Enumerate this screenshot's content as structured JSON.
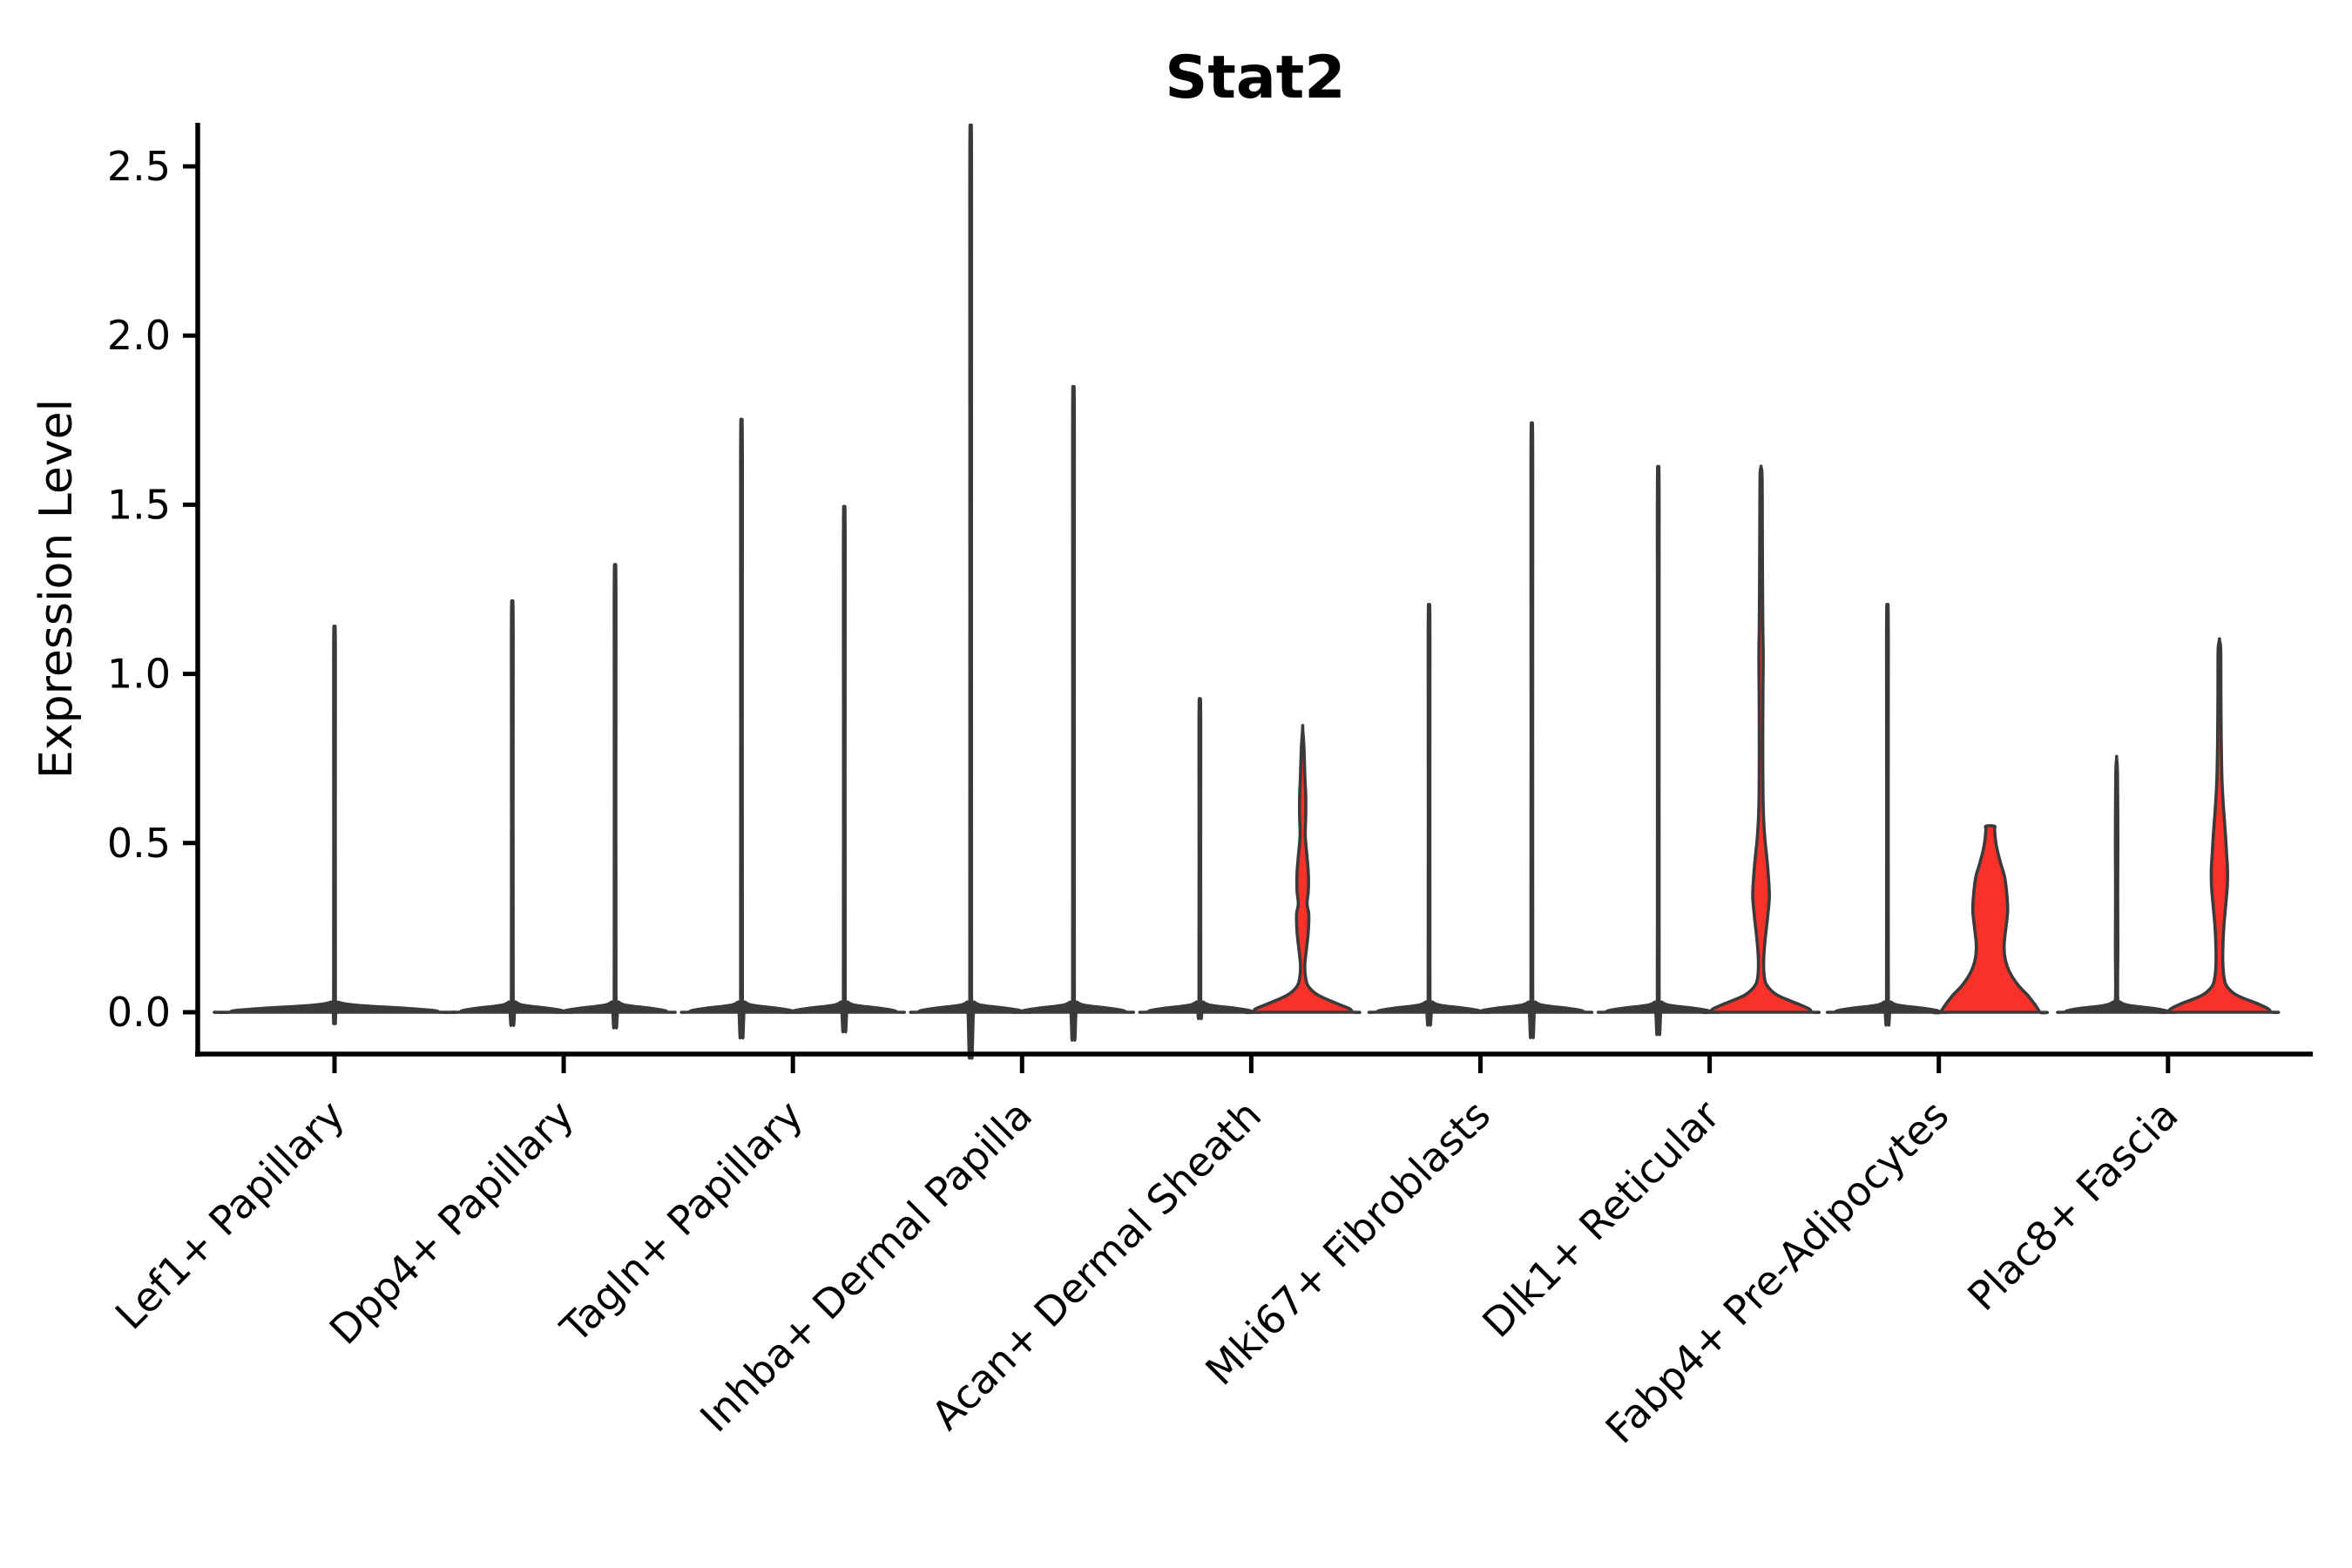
{
  "style": {
    "background": "#FFFFFF",
    "violin_fill_red": "#FA3128",
    "violin_edge": "#3A3A3A",
    "spine_color": "#000000",
    "text_color": "#000000"
  },
  "chart_data": {
    "type": "violin",
    "title": "Stat2",
    "xlabel": "",
    "ylabel": "Expression Level",
    "ylim": [
      0,
      2.6
    ],
    "ytick_values": [
      0.0,
      0.5,
      1.0,
      1.5,
      2.0,
      2.5
    ],
    "yticks": [
      "0.0",
      "0.5",
      "1.0",
      "1.5",
      "2.0",
      "2.5"
    ],
    "grid": false,
    "legend": null,
    "xtick_rotation_deg": 45,
    "categories": [
      "Lef1+ Papillary",
      "Dpp4+ Papillary",
      "Tagln+ Papillary",
      "Inhba+ Dermal Papilla",
      "Acan+ Dermal Sheath",
      "Mki67+ Fibroblasts",
      "Dlk1+ Reticular",
      "Fabp4+ Pre-Adipocytes",
      "Plac8+ Fascia"
    ],
    "groups": [
      {
        "label": "Lef1+ Papillary",
        "violins": [
          {
            "offset": 0,
            "max": 1.1,
            "style": "wide",
            "fill": "dark"
          }
        ]
      },
      {
        "label": "Dpp4+ Papillary",
        "violins": [
          {
            "offset": -59,
            "max": 1.17,
            "style": "thin",
            "fill": "dark"
          },
          {
            "offset": 59,
            "max": 1.27,
            "style": "thin",
            "fill": "dark"
          }
        ]
      },
      {
        "label": "Tagln+ Papillary",
        "violins": [
          {
            "offset": -59,
            "max": 1.67,
            "style": "thin",
            "fill": "dark"
          },
          {
            "offset": 59,
            "max": 1.43,
            "style": "thin",
            "fill": "dark"
          }
        ]
      },
      {
        "label": "Inhba+ Dermal Papilla",
        "violins": [
          {
            "offset": -59,
            "max": 2.48,
            "style": "thin",
            "fill": "dark"
          },
          {
            "offset": 59,
            "max": 1.76,
            "style": "thin",
            "fill": "dark"
          }
        ]
      },
      {
        "label": "Acan+ Dermal Sheath",
        "violins": [
          {
            "offset": -59,
            "max": 0.9,
            "style": "thin",
            "fill": "dark"
          },
          {
            "offset": 59,
            "max": 0.84,
            "style": "custom",
            "fill": "red",
            "profile": [
              [
                0,
                57
              ],
              [
                0.01,
                54
              ],
              [
                0.025,
                40
              ],
              [
                0.05,
                18
              ],
              [
                0.075,
                7
              ],
              [
                0.1,
                3.5
              ],
              [
                0.14,
                2.5
              ],
              [
                0.19,
                4.5
              ],
              [
                0.24,
                6.5
              ],
              [
                0.29,
                7
              ],
              [
                0.32,
                5
              ],
              [
                0.36,
                6.5
              ],
              [
                0.41,
                6.5
              ],
              [
                0.46,
                5
              ],
              [
                0.52,
                3
              ],
              [
                0.58,
                3.5
              ],
              [
                0.64,
                3.5
              ],
              [
                0.7,
                2.5
              ],
              [
                0.78,
                1.5
              ],
              [
                0.84,
                0
              ]
            ]
          }
        ]
      },
      {
        "label": "Mki67+ Fibroblasts",
        "violins": [
          {
            "offset": -59,
            "max": 1.16,
            "style": "thin",
            "fill": "dark"
          },
          {
            "offset": 59,
            "max": 1.66,
            "style": "thin",
            "fill": "dark"
          }
        ]
      },
      {
        "label": "Dlk1+ Reticular",
        "violins": [
          {
            "offset": -59,
            "max": 1.54,
            "style": "thin",
            "fill": "dark"
          },
          {
            "offset": 59,
            "max": 1.61,
            "style": "custom",
            "fill": "red",
            "profile": [
              [
                0,
                58
              ],
              [
                0.01,
                55
              ],
              [
                0.025,
                42
              ],
              [
                0.05,
                19
              ],
              [
                0.075,
                8
              ],
              [
                0.1,
                4
              ],
              [
                0.15,
                3
              ],
              [
                0.21,
                4.5
              ],
              [
                0.28,
                7.5
              ],
              [
                0.34,
                9.5
              ],
              [
                0.4,
                8.5
              ],
              [
                0.46,
                6.5
              ],
              [
                0.51,
                4.5
              ],
              [
                0.57,
                3
              ],
              [
                0.65,
                2.2
              ],
              [
                0.8,
                2
              ],
              [
                0.95,
                2.2
              ],
              [
                1.05,
                2.5
              ],
              [
                1.15,
                2
              ],
              [
                1.4,
                1.5
              ],
              [
                1.58,
                1.2
              ],
              [
                1.61,
                0
              ]
            ]
          }
        ]
      },
      {
        "label": "Fabp4+ Pre-Adipocytes",
        "violins": [
          {
            "offset": -59,
            "max": 1.16,
            "style": "thin",
            "fill": "dark"
          },
          {
            "offset": 59,
            "max": 0.55,
            "style": "custom",
            "fill": "red",
            "flat_top": true,
            "profile": [
              [
                0,
                57
              ],
              [
                0.02,
                52
              ],
              [
                0.05,
                43
              ],
              [
                0.08,
                32
              ],
              [
                0.12,
                22
              ],
              [
                0.16,
                17
              ],
              [
                0.2,
                16
              ],
              [
                0.25,
                18
              ],
              [
                0.3,
                20
              ],
              [
                0.35,
                19
              ],
              [
                0.4,
                16.5
              ],
              [
                0.44,
                12
              ],
              [
                0.48,
                8
              ],
              [
                0.51,
                6
              ],
              [
                0.54,
                5
              ],
              [
                0.55,
                4.8
              ]
            ]
          }
        ]
      },
      {
        "label": "Plac8+ Fascia",
        "violins": [
          {
            "offset": -59,
            "max": 0.75,
            "style": "custom",
            "fill": "dark",
            "profile": [
              [
                0,
                59
              ],
              [
                0.005,
                56
              ],
              [
                0.012,
                40
              ],
              [
                0.02,
                14
              ],
              [
                0.03,
                4
              ],
              [
                0.045,
                1.2
              ],
              [
                0.2,
                1.4
              ],
              [
                0.35,
                1.2
              ],
              [
                0.5,
                1.4
              ],
              [
                0.7,
                1
              ],
              [
                0.75,
                0
              ]
            ]
          },
          {
            "offset": 59,
            "max": 1.1,
            "style": "custom",
            "fill": "red",
            "profile": [
              [
                0,
                59
              ],
              [
                0.01,
                56
              ],
              [
                0.025,
                44
              ],
              [
                0.05,
                20
              ],
              [
                0.075,
                9
              ],
              [
                0.1,
                5.5
              ],
              [
                0.14,
                4
              ],
              [
                0.19,
                4
              ],
              [
                0.25,
                5
              ],
              [
                0.31,
                7
              ],
              [
                0.37,
                9
              ],
              [
                0.42,
                9.3
              ],
              [
                0.47,
                8.2
              ],
              [
                0.53,
                6.8
              ],
              [
                0.6,
                4.8
              ],
              [
                0.66,
                3.4
              ],
              [
                0.72,
                2.6
              ],
              [
                0.82,
                2
              ],
              [
                0.95,
                1.7
              ],
              [
                1.07,
                1.5
              ],
              [
                1.1,
                0
              ]
            ]
          }
        ]
      }
    ]
  }
}
